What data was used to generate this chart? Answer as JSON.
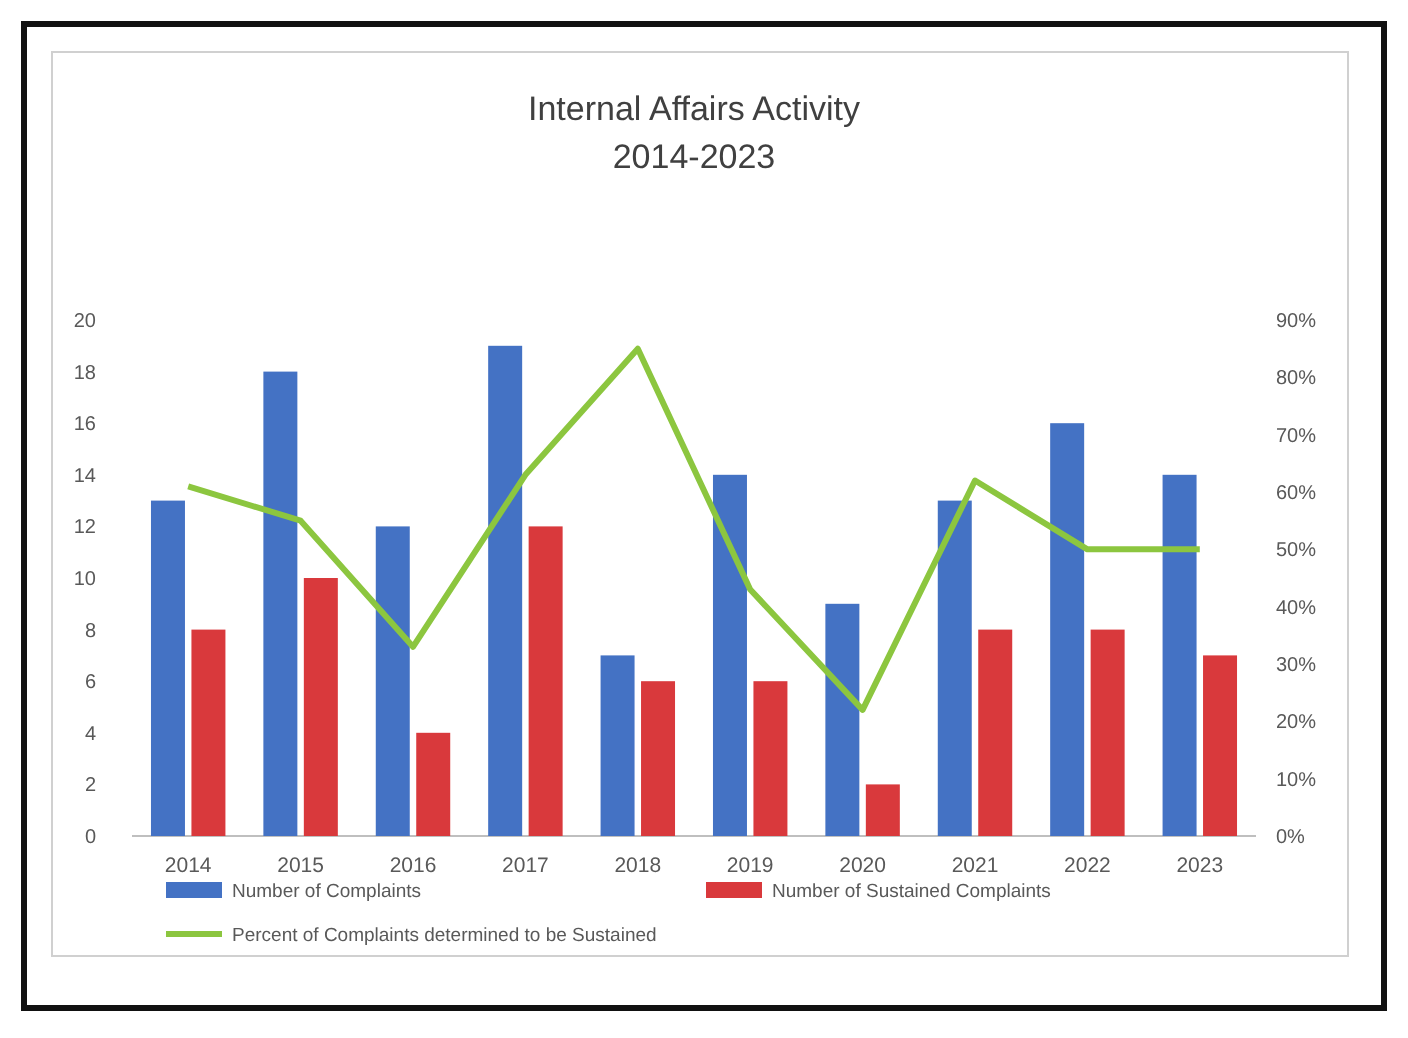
{
  "chart_data": {
    "type": "bar",
    "title": "Internal Affairs Activity\n2014-2023",
    "categories": [
      "2014",
      "2015",
      "2016",
      "2017",
      "2018",
      "2019",
      "2020",
      "2021",
      "2022",
      "2023"
    ],
    "series": [
      {
        "name": "Number of Complaints",
        "color": "#4472c4",
        "values": [
          13,
          18,
          12,
          19,
          7,
          14,
          9,
          13,
          16,
          14
        ]
      },
      {
        "name": "Number of Sustained Complaints",
        "color": "#d9393c",
        "values": [
          8,
          10,
          4,
          12,
          6,
          6,
          2,
          8,
          8,
          7
        ]
      },
      {
        "name": "Percent of Complaints determined to be Sustained",
        "type": "line",
        "axis": "y2",
        "color": "#8cc63f",
        "values": [
          61,
          55,
          33,
          63,
          85,
          43,
          22,
          62,
          50,
          50
        ]
      }
    ],
    "ylim": [
      0,
      20
    ],
    "yticks": [
      0,
      2,
      4,
      6,
      8,
      10,
      12,
      14,
      16,
      18,
      20
    ],
    "y2lim": [
      0,
      90
    ],
    "y2ticks": [
      {
        "value": 0,
        "label": "0%"
      },
      {
        "value": 10,
        "label": "10%"
      },
      {
        "value": 20,
        "label": "20%"
      },
      {
        "value": 30,
        "label": "30%"
      },
      {
        "value": 40,
        "label": "40%"
      },
      {
        "value": 50,
        "label": "50%"
      },
      {
        "value": 60,
        "label": "60%"
      },
      {
        "value": 70,
        "label": "70%"
      },
      {
        "value": 80,
        "label": "80%"
      },
      {
        "value": 90,
        "label": "90%"
      }
    ],
    "grid": false,
    "legend": "bottom",
    "marker": "none",
    "line_style": "solid"
  }
}
